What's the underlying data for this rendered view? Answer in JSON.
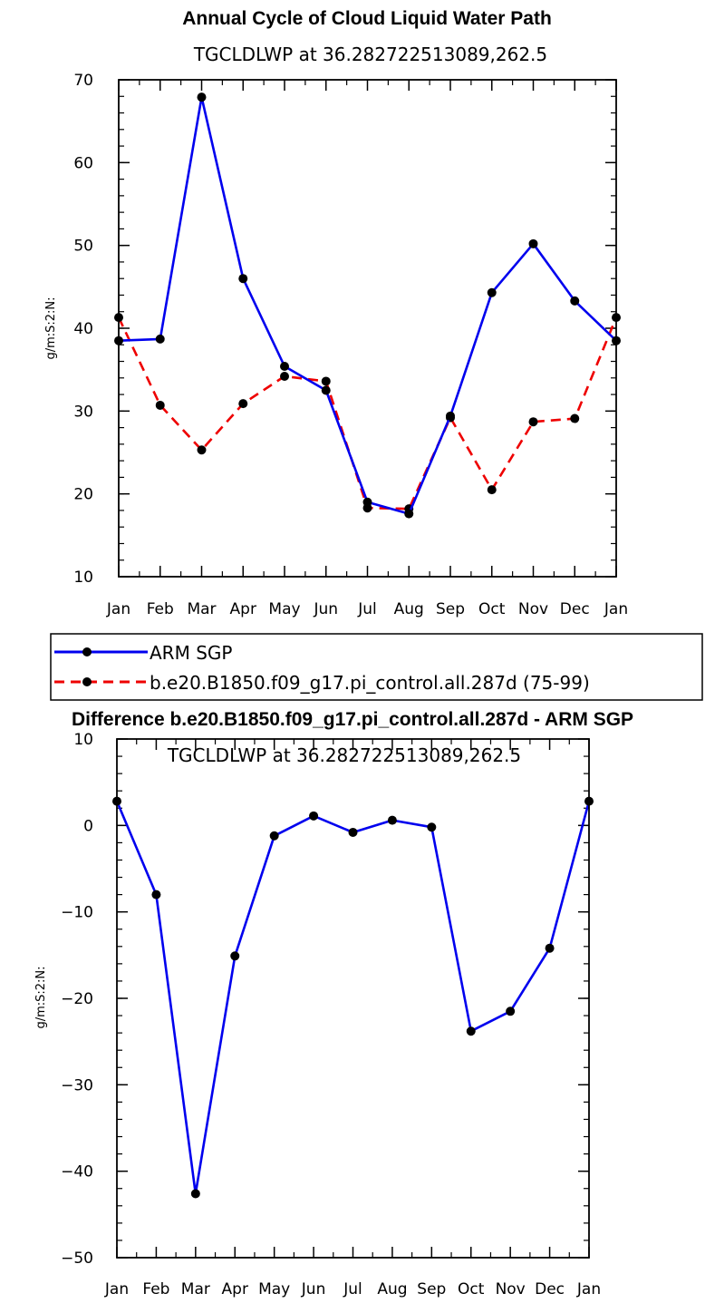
{
  "chart_data": [
    {
      "type": "line",
      "title": "Annual Cycle of Cloud Liquid Water Path",
      "subtitle": "TGCLDLWP  at  36.282722513089,262.5",
      "ylabel": "g/m:S:2:N:",
      "xlabel": "",
      "ylim": [
        10,
        70
      ],
      "yticks": [
        10,
        20,
        30,
        40,
        50,
        60,
        70
      ],
      "categories": [
        "Jan",
        "Feb",
        "Mar",
        "Apr",
        "May",
        "Jun",
        "Jul",
        "Aug",
        "Sep",
        "Oct",
        "Nov",
        "Dec",
        "Jan"
      ],
      "series": [
        {
          "name": "ARM SGP",
          "color": "#0000ee",
          "dash": "solid",
          "values": [
            38.5,
            38.7,
            67.9,
            46.0,
            35.4,
            32.5,
            19.0,
            17.6,
            29.4,
            44.3,
            50.2,
            43.3,
            38.5
          ]
        },
        {
          "name": "b.e20.B1850.f09_g17.pi_control.all.287d (75-99)",
          "color": "#ee0000",
          "dash": "dashed",
          "values": [
            41.3,
            30.7,
            25.3,
            30.9,
            34.2,
            33.6,
            18.3,
            18.2,
            29.2,
            20.5,
            28.7,
            29.1,
            41.3
          ]
        }
      ],
      "legend_position": "below"
    },
    {
      "type": "line",
      "title": "Difference b.e20.B1850.f09_g17.pi_control.all.287d - ARM SGP",
      "subtitle": "TGCLDLWP  at  36.282722513089,262.5",
      "ylabel": "g/m:S:2:N:",
      "xlabel": "",
      "ylim": [
        -50,
        10
      ],
      "yticks": [
        10,
        0,
        -10,
        -20,
        -30,
        -40,
        -50
      ],
      "ytick_labels": [
        "10",
        "0",
        "−10",
        "−20",
        "−30",
        "−40",
        "−50"
      ],
      "categories": [
        "Jan",
        "Feb",
        "Mar",
        "Apr",
        "May",
        "Jun",
        "Jul",
        "Aug",
        "Sep",
        "Oct",
        "Nov",
        "Dec",
        "Jan"
      ],
      "series": [
        {
          "name": "Difference",
          "color": "#0000ee",
          "dash": "solid",
          "values": [
            2.8,
            -8.0,
            -42.6,
            -15.1,
            -1.2,
            1.1,
            -0.8,
            0.6,
            -0.2,
            -23.8,
            -21.5,
            -14.2,
            2.8
          ]
        }
      ]
    }
  ]
}
